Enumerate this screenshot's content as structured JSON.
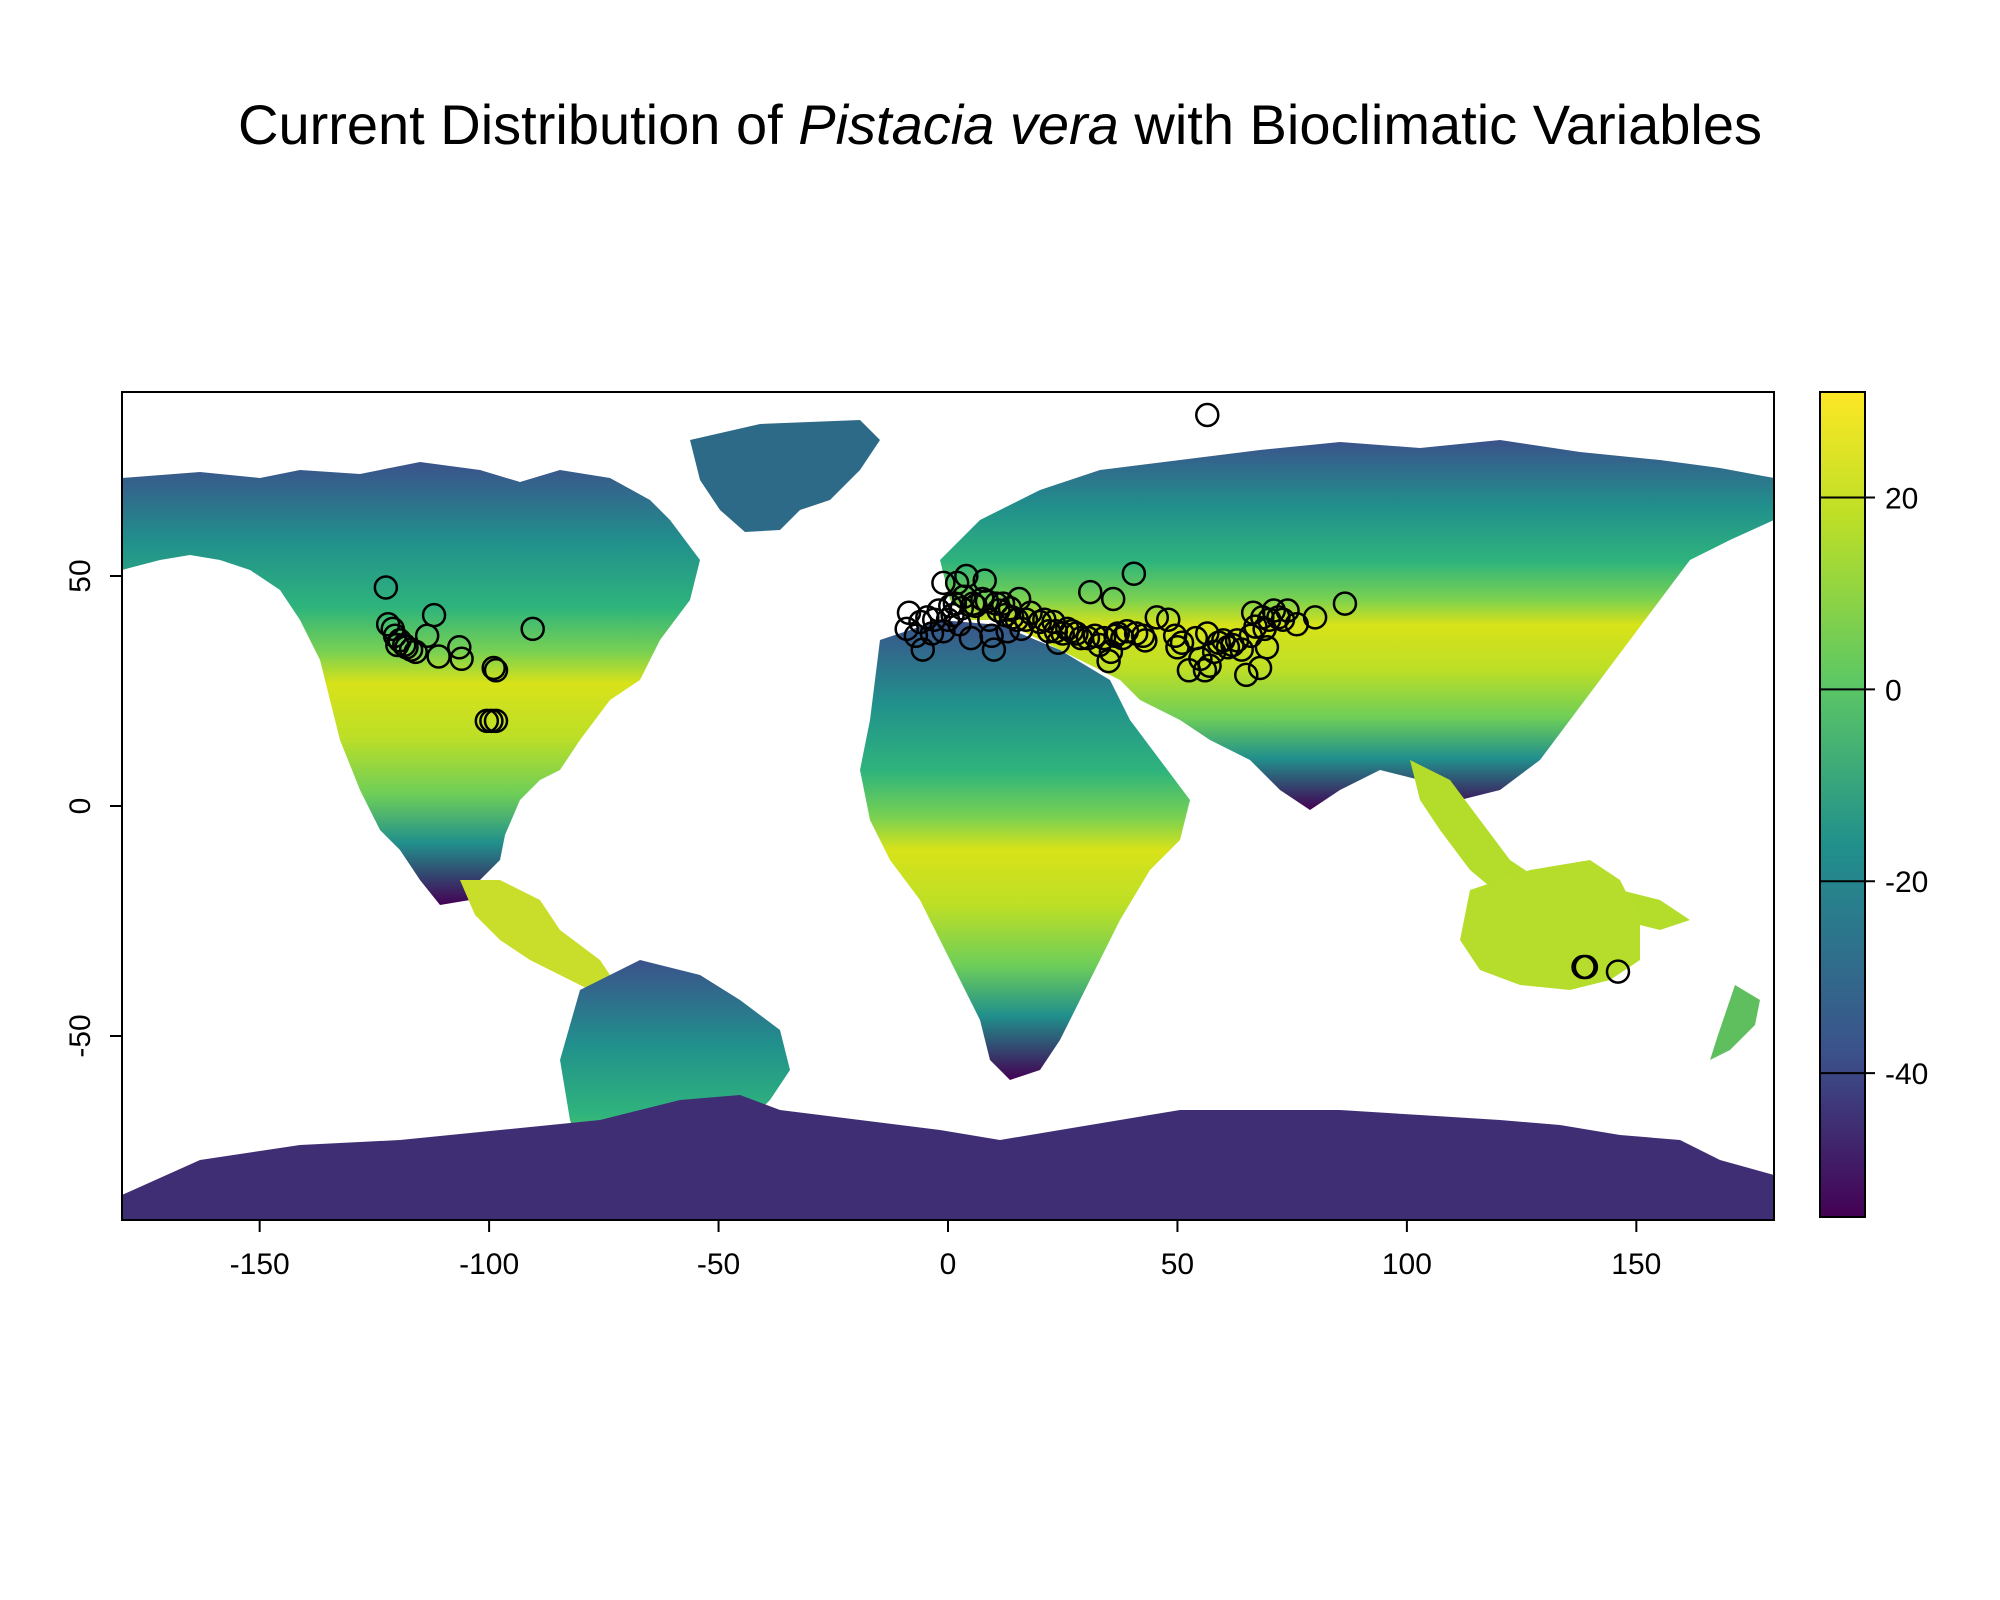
{
  "title": {
    "prefix": "Current Distribution of",
    "species": "Pistacia vera",
    "suffix": "with Bioclimatic Variables"
  },
  "map": {
    "x_range": [
      -180,
      180
    ],
    "y_range": [
      -90,
      90
    ],
    "x_ticks": [
      -150,
      -100,
      -50,
      0,
      50,
      100,
      150
    ],
    "y_ticks": [
      -50,
      0,
      50
    ],
    "x_tick_labels": [
      "-150",
      "-100",
      "-50",
      "0",
      "50",
      "100",
      "150"
    ],
    "y_tick_labels": [
      "-50",
      "0",
      "50"
    ],
    "land_color_ramp": "viridis",
    "ocean_color": "#ffffff"
  },
  "colorbar": {
    "range": [
      -55,
      31
    ],
    "ticks": [
      20,
      0,
      -20,
      -40
    ],
    "tick_labels": [
      "20",
      "0",
      "-20",
      "-40"
    ],
    "colors": [
      "#440154",
      "#3b528b",
      "#21908c",
      "#5dc863",
      "#bddf26",
      "#fde725"
    ]
  },
  "chart_data": {
    "type": "scatter",
    "marker": "open-circle",
    "points": [
      [
        -122.5,
        47.5
      ],
      [
        -122,
        39.5
      ],
      [
        -121,
        38.5
      ],
      [
        -120.5,
        37
      ],
      [
        -119.5,
        36
      ],
      [
        -118.5,
        35
      ],
      [
        -118,
        34.5
      ],
      [
        -117,
        34
      ],
      [
        -116,
        33.5
      ],
      [
        -120,
        35
      ],
      [
        -113.5,
        37
      ],
      [
        -112,
        41.5
      ],
      [
        -111,
        32.5
      ],
      [
        -106.5,
        34.5
      ],
      [
        -106,
        32
      ],
      [
        -99,
        30
      ],
      [
        -98.5,
        29.5
      ],
      [
        -90.5,
        38.5
      ],
      [
        -100.5,
        18.5
      ],
      [
        -99.5,
        18.5
      ],
      [
        -98.5,
        18.5
      ],
      [
        -9,
        38.5
      ],
      [
        -8.5,
        42
      ],
      [
        -7,
        37
      ],
      [
        -6,
        40
      ],
      [
        -5.5,
        34
      ],
      [
        -4.5,
        41
      ],
      [
        -3.5,
        37.5
      ],
      [
        -3,
        40.5
      ],
      [
        -2,
        42.5
      ],
      [
        -1,
        38
      ],
      [
        0,
        40.5
      ],
      [
        -1,
        48.5
      ],
      [
        0.5,
        43.5
      ],
      [
        1,
        41.5
      ],
      [
        1.5,
        44
      ],
      [
        2,
        48.5
      ],
      [
        2.5,
        39.5
      ],
      [
        3,
        43
      ],
      [
        3.5,
        45.5
      ],
      [
        4,
        50
      ],
      [
        5,
        36.5
      ],
      [
        5.5,
        44
      ],
      [
        6,
        43.5
      ],
      [
        7.5,
        45
      ],
      [
        8,
        49
      ],
      [
        8.5,
        44.5
      ],
      [
        9,
        40.5
      ],
      [
        9.5,
        37
      ],
      [
        10,
        34
      ],
      [
        10.5,
        44
      ],
      [
        11,
        42.5
      ],
      [
        12,
        44
      ],
      [
        12.5,
        41.5
      ],
      [
        13,
        38
      ],
      [
        13.5,
        43
      ],
      [
        14,
        41
      ],
      [
        15,
        40.5
      ],
      [
        15.5,
        45
      ],
      [
        16,
        38.5
      ],
      [
        17,
        40.5
      ],
      [
        18,
        42
      ],
      [
        20,
        40
      ],
      [
        21,
        40.5
      ],
      [
        22,
        38
      ],
      [
        23,
        40
      ],
      [
        23.5,
        38
      ],
      [
        24,
        35.5
      ],
      [
        25,
        37.5
      ],
      [
        26,
        38.5
      ],
      [
        27,
        38
      ],
      [
        28,
        37.5
      ],
      [
        29,
        36.5
      ],
      [
        30.5,
        36.5
      ],
      [
        31,
        46.5
      ],
      [
        32,
        37
      ],
      [
        33,
        35
      ],
      [
        34,
        36.5
      ],
      [
        35,
        31.5
      ],
      [
        35.5,
        33.5
      ],
      [
        36,
        45
      ],
      [
        36.5,
        37
      ],
      [
        37,
        37.5
      ],
      [
        38,
        36.5
      ],
      [
        39,
        38
      ],
      [
        40.5,
        50.5
      ],
      [
        41,
        37.5
      ],
      [
        42.5,
        37
      ],
      [
        43,
        36
      ],
      [
        45.5,
        41
      ],
      [
        48,
        40.5
      ],
      [
        49.5,
        37
      ],
      [
        50,
        34.5
      ],
      [
        51,
        35.5
      ],
      [
        52.5,
        29.5
      ],
      [
        54,
        36.5
      ],
      [
        55,
        32
      ],
      [
        56,
        29.5
      ],
      [
        56.5,
        37.5
      ],
      [
        57,
        30.5
      ],
      [
        58,
        33.5
      ],
      [
        59,
        35.5
      ],
      [
        60,
        36
      ],
      [
        61,
        34.5
      ],
      [
        62,
        35
      ],
      [
        63,
        36
      ],
      [
        64,
        34
      ],
      [
        65,
        28.5
      ],
      [
        66,
        37
      ],
      [
        66.5,
        42
      ],
      [
        67,
        39
      ],
      [
        68,
        30
      ],
      [
        68.5,
        41
      ],
      [
        69,
        38.5
      ],
      [
        69.5,
        34.5
      ],
      [
        70,
        40.5
      ],
      [
        71,
        42.5
      ],
      [
        72,
        41
      ],
      [
        73,
        40.5
      ],
      [
        74,
        42.5
      ],
      [
        76,
        39.5
      ],
      [
        80,
        41
      ],
      [
        86.5,
        44
      ],
      [
        56.5,
        85
      ],
      [
        138.5,
        -35
      ],
      [
        139,
        -35
      ],
      [
        146,
        -36
      ]
    ]
  }
}
